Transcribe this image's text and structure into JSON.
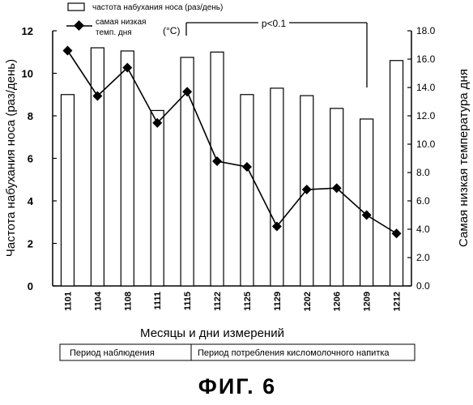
{
  "chart_data": {
    "type": "bar+line",
    "categories": [
      "1101",
      "1104",
      "1108",
      "1111",
      "1115",
      "1122",
      "1125",
      "1129",
      "1202",
      "1206",
      "1209",
      "1212"
    ],
    "series": [
      {
        "name": "частота набухания носа (раз/день)",
        "type": "bar",
        "axis": "left",
        "values": [
          9.0,
          11.2,
          11.05,
          8.25,
          10.75,
          11.0,
          9.0,
          9.3,
          8.95,
          8.35,
          7.85,
          10.6
        ]
      },
      {
        "name": "самая низкая темп. дня",
        "type": "line",
        "marker": "diamond",
        "axis": "right",
        "values": [
          16.6,
          13.4,
          15.4,
          11.5,
          13.7,
          8.8,
          8.4,
          4.2,
          6.8,
          6.9,
          5.0,
          3.7
        ]
      }
    ],
    "legend": {
      "bar_label": "частота набухания носа (раз/день)",
      "line_label_1": "самая низкая",
      "line_label_2": "темп. дня",
      "placement": "top-left"
    },
    "y_left": {
      "label": "Частота набухания носа (раз/день)",
      "range": [
        0,
        12
      ],
      "ticks": [
        "0",
        "2",
        "4",
        "6",
        "8",
        "10",
        "12"
      ]
    },
    "y_right": {
      "label": "Самая низкая температура дня",
      "unit": "(°C)",
      "range": [
        0,
        18
      ],
      "ticks": [
        "0.0",
        "2.0",
        "4.0",
        "6.0",
        "8.0",
        "10.0",
        "12.0",
        "14.0",
        "16.0",
        "18.0"
      ]
    },
    "x_axis": {
      "label": "Месяцы и дни измерений"
    },
    "annotation": {
      "text": "p<0.1",
      "from_category": "1115",
      "to_category": "1209"
    },
    "grid": false
  },
  "periods": {
    "observation": "Период наблюдения",
    "consumption": "Период потребления кисломолочного напитка"
  },
  "figure_title": "ФИГ. 6",
  "colors": {
    "bar_fill": "#ffffff",
    "ink": "#000000",
    "background": "#ffffff"
  }
}
